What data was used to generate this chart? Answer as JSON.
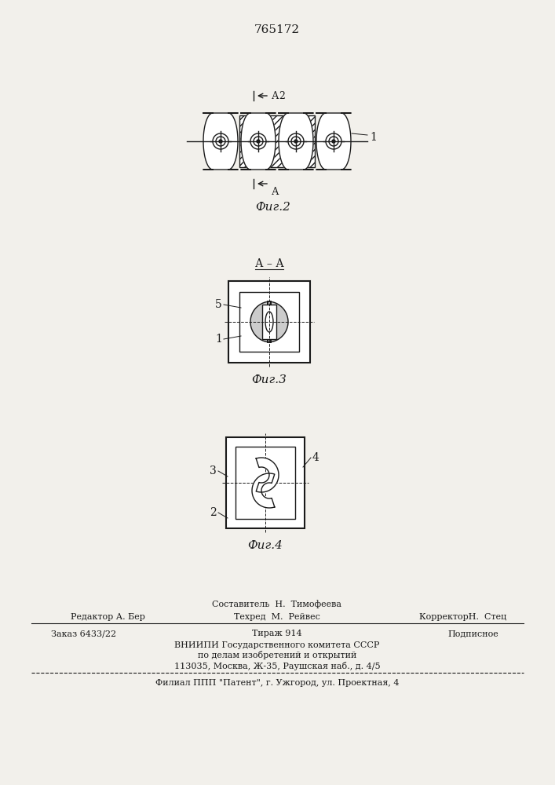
{
  "patent_number": "765172",
  "fig2_label": "Фиг.2",
  "fig3_label": "Фиг.3",
  "fig4_label": "Фиг.4",
  "bg_color": "#f2f0eb",
  "line_color": "#1a1a1a",
  "editor_line": "Редактор А. Бер"
}
